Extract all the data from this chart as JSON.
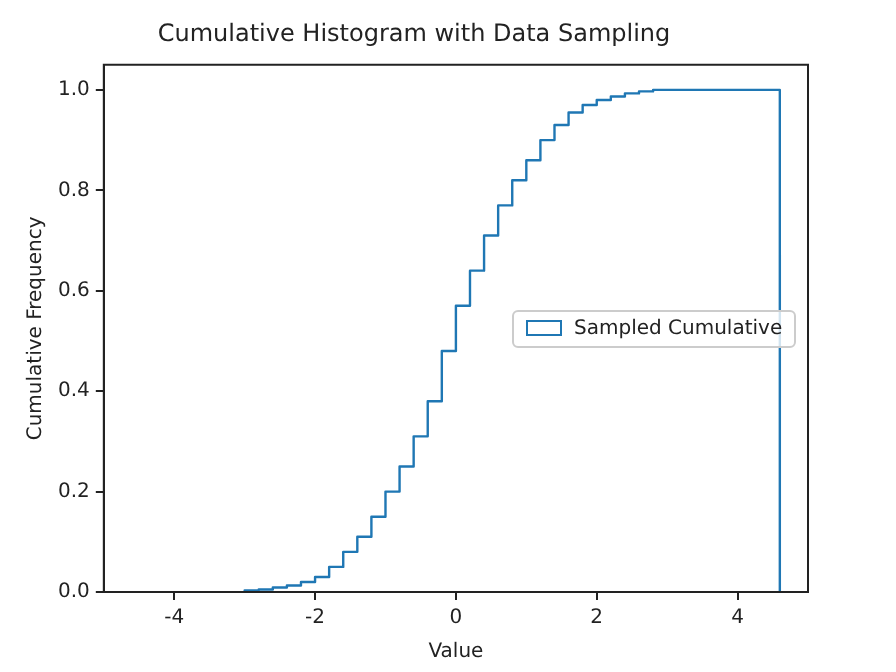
{
  "chart_data": {
    "type": "histogram",
    "title": "Cumulative Histogram with Data Sampling",
    "xlabel": "Value",
    "ylabel": "Cumulative Frequency",
    "bins": [
      -3.0,
      -2.8,
      -2.6,
      -2.4,
      -2.2,
      -2.0,
      -1.8,
      -1.6,
      -1.4,
      -1.2,
      -1.0,
      -0.8,
      -0.6,
      -0.4,
      -0.2,
      0.0,
      0.2,
      0.4,
      0.6,
      0.8,
      1.0,
      1.2,
      1.4,
      1.6,
      1.8,
      2.0,
      2.2,
      2.4,
      2.6,
      2.8,
      4.6
    ],
    "series": [
      {
        "name": "Sampled Cumulative",
        "color": "#1f77b4",
        "values": [
          0.003,
          0.005,
          0.009,
          0.013,
          0.02,
          0.03,
          0.05,
          0.08,
          0.11,
          0.15,
          0.2,
          0.25,
          0.31,
          0.38,
          0.48,
          0.57,
          0.64,
          0.71,
          0.77,
          0.82,
          0.86,
          0.9,
          0.93,
          0.955,
          0.97,
          0.98,
          0.987,
          0.993,
          0.997,
          1.0
        ]
      }
    ],
    "xlim": [
      -5,
      5
    ],
    "xticks": [
      -4,
      -2,
      0,
      2,
      4
    ],
    "ylim": [
      0,
      1.05
    ],
    "yticks": [
      {
        "value": 0,
        "label": "0.0"
      },
      {
        "value": 0.2,
        "label": "0.2"
      },
      {
        "value": 0.4,
        "label": "0.4"
      },
      {
        "value": 0.6,
        "label": "0.6"
      },
      {
        "value": 0.8,
        "label": "0.8"
      },
      {
        "value": 1,
        "label": "1.0"
      }
    ],
    "grid": false,
    "legend": "center right"
  }
}
